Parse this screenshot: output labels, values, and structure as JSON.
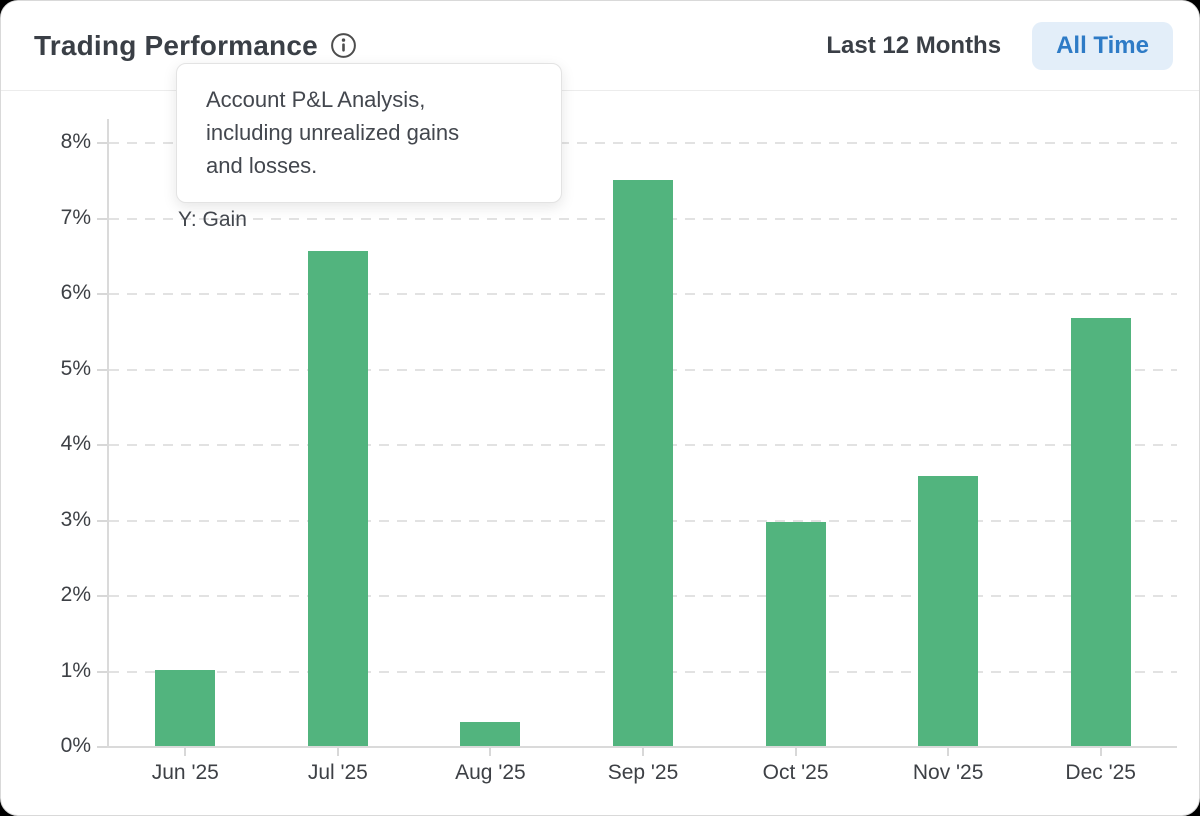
{
  "header": {
    "title": "Trading Performance",
    "range_toggle": {
      "last12_label": "Last 12 Months",
      "alltime_label": "All Time",
      "selected": "All Time"
    },
    "accent_text_color": "#2e7bc6",
    "accent_bg_color": "#e3eef9"
  },
  "tooltip": {
    "lines": [
      "Account P&L Analysis,",
      "including unrealized gains",
      "and losses."
    ]
  },
  "chart_data": {
    "type": "bar",
    "title": "Trading Performance",
    "categories": [
      "Jun '25",
      "Jul '25",
      "Aug '25",
      "Sep '25",
      "Oct '25",
      "Nov '25",
      "Dec '25"
    ],
    "series": [
      {
        "name": "Gain",
        "values": [
          1.01,
          6.55,
          0.32,
          7.5,
          2.97,
          3.58,
          5.67
        ]
      }
    ],
    "y_axis_annotation": "Y: Gain",
    "y_ticks": [
      "0%",
      "1%",
      "2%",
      "3%",
      "4%",
      "5%",
      "6%",
      "7%",
      "8%"
    ],
    "ylim": [
      0,
      8
    ],
    "y_unit": "%",
    "xlabel": "",
    "ylabel": "Gain",
    "bar_color": "#52b47e",
    "grid": "horizontal-dashed",
    "legend": "none"
  }
}
